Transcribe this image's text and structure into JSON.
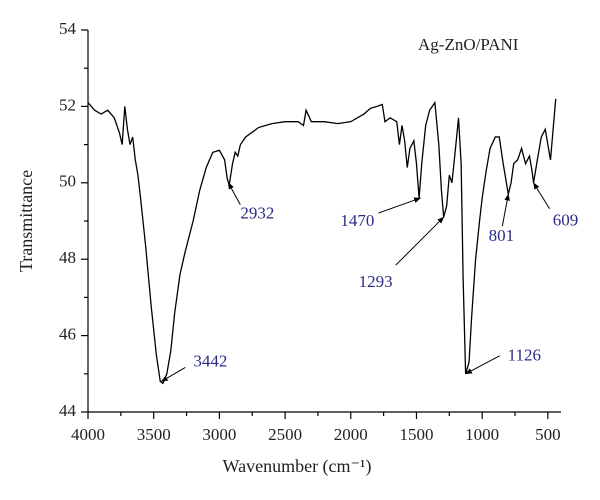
{
  "chart_data": {
    "type": "line",
    "xlabel": "Wavenumber (cm⁻¹)",
    "ylabel": "Transmittance",
    "x": [
      4000,
      3950,
      3900,
      3850,
      3800,
      3760,
      3740,
      3720,
      3700,
      3680,
      3660,
      3640,
      3620,
      3600,
      3560,
      3520,
      3480,
      3450,
      3430,
      3400,
      3370,
      3340,
      3300,
      3260,
      3200,
      3150,
      3100,
      3050,
      3000,
      2960,
      2940,
      2925,
      2900,
      2880,
      2860,
      2840,
      2800,
      2700,
      2600,
      2500,
      2400,
      2360,
      2340,
      2300,
      2200,
      2100,
      2000,
      1900,
      1850,
      1800,
      1760,
      1740,
      1700,
      1650,
      1630,
      1610,
      1590,
      1570,
      1550,
      1520,
      1500,
      1480,
      1460,
      1430,
      1400,
      1360,
      1330,
      1310,
      1293,
      1270,
      1250,
      1230,
      1200,
      1180,
      1160,
      1145,
      1126,
      1100,
      1080,
      1050,
      1020,
      1000,
      970,
      940,
      900,
      870,
      840,
      801,
      780,
      760,
      730,
      700,
      670,
      640,
      620,
      609,
      580,
      550,
      520,
      500,
      480,
      460,
      440
    ],
    "series": [
      {
        "name": "Ag-ZnO/PANI",
        "color": "#000000",
        "values": [
          52.1,
          51.9,
          51.8,
          51.9,
          51.7,
          51.3,
          51.0,
          52.0,
          51.4,
          51.0,
          51.2,
          50.6,
          50.2,
          49.6,
          48.3,
          46.8,
          45.5,
          44.8,
          44.75,
          45.0,
          45.6,
          46.6,
          47.6,
          48.2,
          49.0,
          49.8,
          50.4,
          50.8,
          50.85,
          50.6,
          50.1,
          49.95,
          50.5,
          50.8,
          50.7,
          51.0,
          51.2,
          51.45,
          51.55,
          51.6,
          51.6,
          51.5,
          51.9,
          51.6,
          51.6,
          51.55,
          51.6,
          51.8,
          51.95,
          52.0,
          52.05,
          51.6,
          51.7,
          51.6,
          51.0,
          51.5,
          51.1,
          50.4,
          50.9,
          51.1,
          50.5,
          49.6,
          50.5,
          51.5,
          51.9,
          52.1,
          51.0,
          49.8,
          49.1,
          49.4,
          50.2,
          50.0,
          51.0,
          51.7,
          50.5,
          47.5,
          45.0,
          45.3,
          46.5,
          48.0,
          49.0,
          49.6,
          50.3,
          50.9,
          51.2,
          51.2,
          50.5,
          49.7,
          50.0,
          50.5,
          50.6,
          50.9,
          50.5,
          50.7,
          50.3,
          50.0,
          50.6,
          51.2,
          51.4,
          51.0,
          50.6,
          51.4,
          52.2
        ]
      }
    ],
    "annotations": [
      {
        "label": "3442",
        "x": 3442,
        "y": 44.8
      },
      {
        "label": "2932",
        "x": 2932,
        "y": 50.0
      },
      {
        "label": "1470",
        "x": 1470,
        "y": 49.6
      },
      {
        "label": "1293",
        "x": 1293,
        "y": 49.1
      },
      {
        "label": "1126",
        "x": 1126,
        "y": 45.0
      },
      {
        "label": "801",
        "x": 801,
        "y": 49.7
      },
      {
        "label": "609",
        "x": 609,
        "y": 50.0
      }
    ],
    "xlim": [
      4000,
      400
    ],
    "ylim": [
      44,
      54
    ],
    "xticks": [
      4000,
      3500,
      3000,
      2500,
      2000,
      1500,
      1000,
      500
    ],
    "xminorticks": [
      3750,
      3250,
      2750,
      2250,
      1750,
      1250,
      750
    ],
    "yticks": [
      44,
      46,
      48,
      50,
      52,
      54
    ],
    "yminorticks": [
      45,
      47,
      49,
      51,
      53
    ],
    "annotation_color": "#2b2b8a"
  }
}
